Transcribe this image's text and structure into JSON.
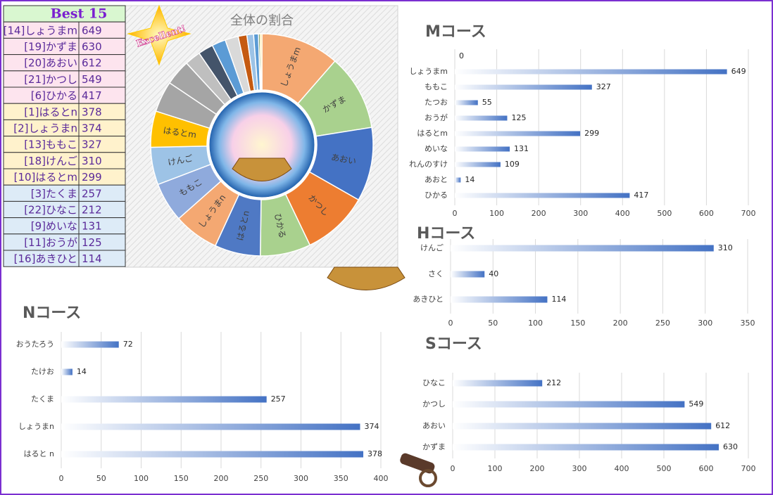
{
  "badge": "Excellent!",
  "table": {
    "title": "Best 15",
    "rows": [
      [
        "[14]しょうまm",
        649
      ],
      [
        "[19]かずま",
        630
      ],
      [
        "[20]あおい",
        612
      ],
      [
        "[21]かつし",
        549
      ],
      [
        "[6]ひかる",
        417
      ],
      [
        "[1]はるとn",
        378
      ],
      [
        "[2]しょうまn",
        374
      ],
      [
        "[13]ももこ",
        327
      ],
      [
        "[18]けんご",
        310
      ],
      [
        "[10]はるとm",
        299
      ],
      [
        "[3]たくま",
        257
      ],
      [
        "[22]ひなこ",
        212
      ],
      [
        "[9]めいな",
        131
      ],
      [
        "[11]おうが",
        125
      ],
      [
        "[16]あきひと",
        114
      ]
    ]
  },
  "chart_data": [
    {
      "type": "pie",
      "title": "全体の割合",
      "categories": [
        "しょうまm",
        "かずま",
        "あおい",
        "かつし",
        "ひかる",
        "はるとn",
        "しょうまn",
        "ももこ",
        "けんご",
        "はるとm",
        null,
        null,
        null,
        null,
        null,
        null,
        null,
        null,
        null,
        null,
        null
      ],
      "values": [
        649,
        630,
        612,
        549,
        417,
        378,
        374,
        327,
        310,
        299,
        257,
        212,
        131,
        125,
        114,
        109,
        72,
        55,
        40,
        14,
        14
      ],
      "colors": [
        "#f4a872",
        "#a9d18e",
        "#4472c4",
        "#ed7d31",
        "#a9d18e",
        "#4f79c4",
        "#f4a872",
        "#8faadc",
        "#9dc3e6",
        "#ffc000",
        "#a5a5a5",
        "#a5a5a5",
        "#bfbfbf",
        "#44546a",
        "#5b9bd5",
        "#d9d9d9",
        "#c55a11",
        "#9dc3e6",
        "#5b9bd5",
        "#548235",
        "#ffd966"
      ]
    },
    {
      "type": "bar",
      "title": "Mコース",
      "categories": [
        null,
        "しょうまm",
        "ももこ",
        "たつお",
        "おうが",
        "はるとm",
        "めいな",
        "れんのすけ",
        "あおと",
        "ひかる"
      ],
      "values": [
        0,
        649,
        327,
        55,
        125,
        299,
        131,
        109,
        14,
        417
      ],
      "color": "#4472c4",
      "xlim": [
        0,
        700
      ],
      "xticks": [
        0,
        100,
        200,
        300,
        400,
        500,
        600,
        700
      ],
      "grid": true
    },
    {
      "type": "bar",
      "title": "Hコース",
      "categories": [
        "けんご",
        "さく",
        "あきひと"
      ],
      "values": [
        310,
        40,
        114
      ],
      "color": "#4472c4",
      "xlim": [
        0,
        350
      ],
      "xticks": [
        0,
        50,
        100,
        150,
        200,
        250,
        300,
        350
      ],
      "grid": true
    },
    {
      "type": "bar",
      "title": "Nコース",
      "categories": [
        "おうたろう",
        "たけお",
        "たくま",
        "しょうまn",
        "はると n"
      ],
      "values": [
        72,
        14,
        257,
        374,
        378
      ],
      "color": "#4472c4",
      "xlim": [
        0,
        400
      ],
      "xticks": [
        0,
        50,
        100,
        150,
        200,
        250,
        300,
        350,
        400
      ],
      "grid": true
    },
    {
      "type": "bar",
      "title": "Sコース",
      "categories": [
        "ひなこ",
        "かつし",
        "あおい",
        "かずま"
      ],
      "values": [
        212,
        549,
        612,
        630
      ],
      "color": "#4472c4",
      "xlim": [
        0,
        700
      ],
      "xticks": [
        0,
        100,
        200,
        300,
        400,
        500,
        600,
        700
      ],
      "grid": true
    }
  ]
}
